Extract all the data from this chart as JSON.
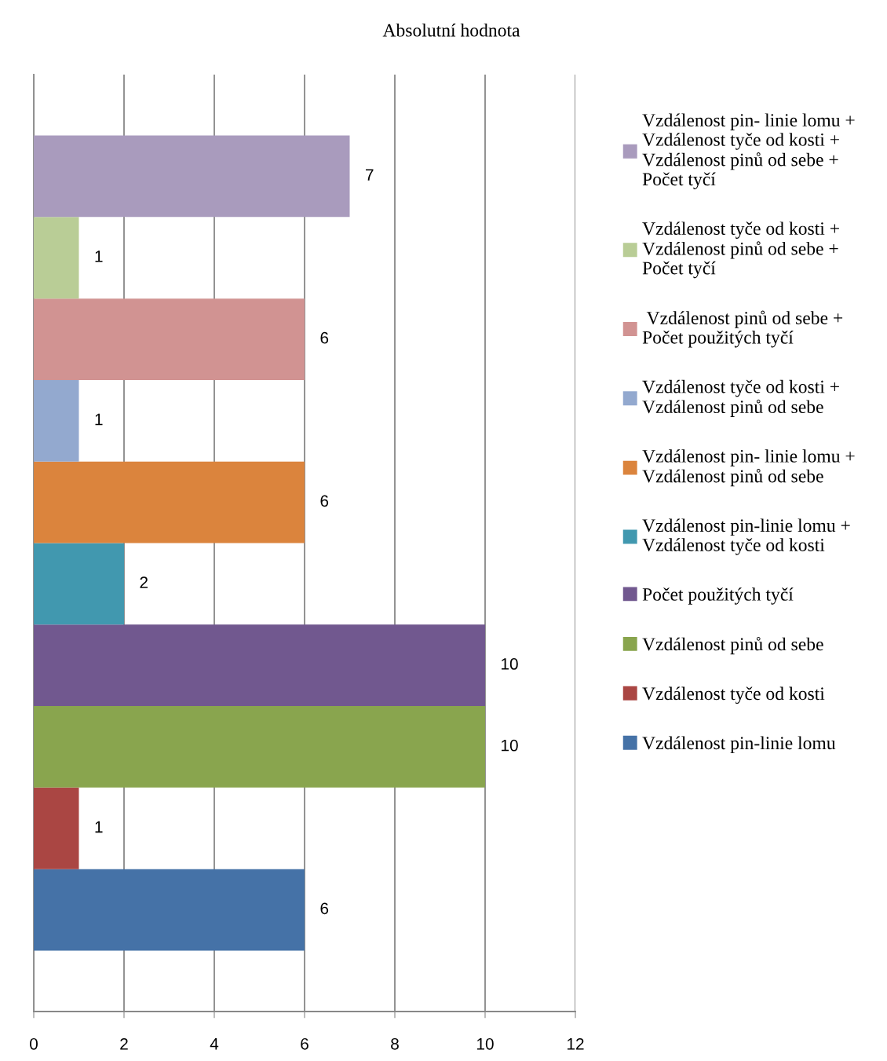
{
  "chart_data": {
    "type": "bar",
    "orientation": "horizontal",
    "title": "Absolutní hodnota",
    "categories": [
      null
    ],
    "series": [
      {
        "name": "Vzdálenost pin-linie lomu",
        "color": "#4572a7",
        "values": [
          6
        ]
      },
      {
        "name": "Vzdálenost tyče od kosti",
        "color": "#aa4643",
        "values": [
          1
        ]
      },
      {
        "name": "Vzdálenost pinů od sebe",
        "color": "#89a54e",
        "values": [
          10
        ]
      },
      {
        "name": "Počet použitých tyčí",
        "color": "#71588f",
        "values": [
          10
        ]
      },
      {
        "name": "Vzdálenost pin-linie lomu +\nVzdálenost tyče od kosti",
        "color": "#4198af",
        "values": [
          2
        ]
      },
      {
        "name": "Vzdálenost pin- linie lomu +\nVzdálenost pinů od sebe",
        "color": "#db843d",
        "values": [
          6
        ]
      },
      {
        "name": "Vzdálenost tyče od kosti +\nVzdálenost pinů od sebe",
        "color": "#93a9cf",
        "values": [
          1
        ]
      },
      {
        "name": " Vzdálenost pinů od sebe +\nPočet použitých tyčí",
        "color": "#d19392",
        "values": [
          6
        ]
      },
      {
        "name": "Vzdálenost tyče od kosti +\nVzdálenost pinů od sebe +\nPočet tyčí",
        "color": "#b9cd96",
        "values": [
          1
        ]
      },
      {
        "name": "Vzdálenost pin- linie lomu +\nVzdálenost tyče od kosti +\nVzdálenost pinů od sebe +\nPočet tyčí",
        "color": "#a99bbd",
        "values": [
          7
        ]
      }
    ],
    "xlim": [
      0,
      12
    ],
    "xticks": [
      0,
      2,
      4,
      6,
      8,
      10,
      12
    ],
    "grid": "x",
    "legend": "right",
    "data_labels": true
  }
}
